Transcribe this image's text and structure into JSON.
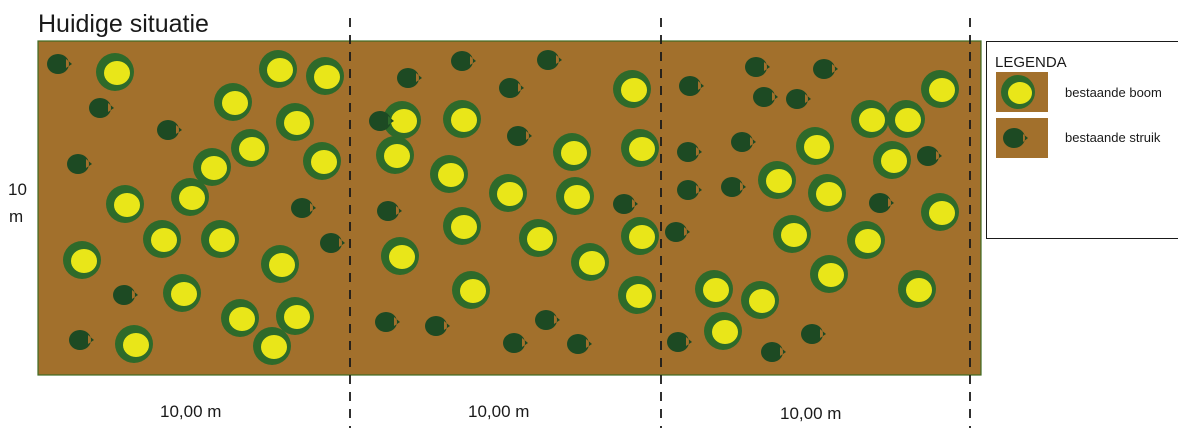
{
  "title": "Huidige situatie",
  "dimensions": {
    "height_value": "10",
    "height_unit": "m",
    "widths": [
      "10,00 m",
      "10,00 m",
      "10,00 m"
    ]
  },
  "legend": {
    "title": "LEGENDA",
    "items": [
      {
        "label": "bestaande boom",
        "icon": "tree-icon"
      },
      {
        "label": "bestaande struik",
        "icon": "shrub-icon"
      }
    ]
  },
  "colors": {
    "ground": "#a2702c",
    "tree_ring": "#2e6a2a",
    "tree_crown": "#e9e619",
    "shrub": "#1d4a23"
  }
}
